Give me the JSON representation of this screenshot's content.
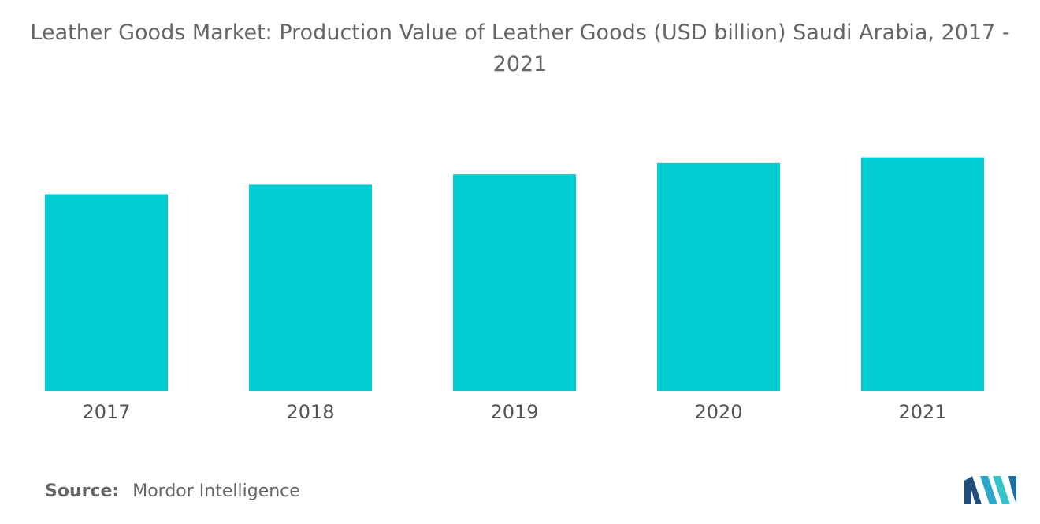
{
  "title": "Leather Goods Market: Production Value of Leather Goods (USD billion) Saudi Arabia, 2017 - 2021",
  "source": {
    "label": "Source:",
    "text": "Mordor Intelligence"
  },
  "logo": {
    "icon": "mordor-intelligence-logo",
    "colors": [
      "#1f4e79",
      "#2ba7c9",
      "#35c2c9"
    ]
  },
  "colors": {
    "bar": "#00cdd1",
    "text": "#666666",
    "background": "#ffffff"
  },
  "chart_data": {
    "type": "bar",
    "title": "Leather Goods Market: Production Value of Leather Goods (USD billion) Saudi Arabia, 2017 - 2021",
    "xlabel": "",
    "ylabel": "",
    "categories": [
      "2017",
      "2018",
      "2019",
      "2020",
      "2021"
    ],
    "values": [
      2.08,
      2.18,
      2.29,
      2.41,
      2.47
    ],
    "ylim": [
      0,
      3.0
    ],
    "grid": false,
    "legend": "none",
    "axis_visible": false
  }
}
